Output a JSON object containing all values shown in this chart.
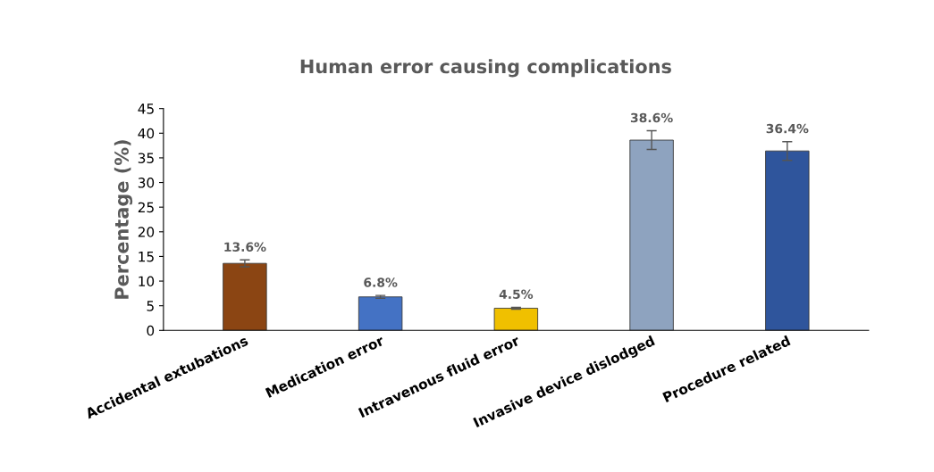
{
  "chart_data": {
    "type": "bar",
    "title": "Human error causing complications",
    "ylabel": "Percentage (%)",
    "categories": [
      "Accidental extubations",
      "Medication error",
      "Intravenous fluid error",
      "Invasive device dislodged",
      "Procedure related"
    ],
    "values": [
      13.6,
      6.8,
      4.5,
      38.6,
      36.4
    ],
    "colors": [
      "#8b4513",
      "#4472c4",
      "#f0c000",
      "#8ea3bf",
      "#2f559c"
    ],
    "errors": [
      0.7,
      0.3,
      0.2,
      1.9,
      1.9
    ],
    "value_labels": [
      "13.6%",
      "6.8%",
      "4.5%",
      "38.6%",
      "36.4%"
    ],
    "ylim": [
      0,
      45
    ],
    "yticks": [
      0,
      5,
      10,
      15,
      20,
      25,
      30,
      35,
      40,
      45
    ],
    "grid": false,
    "legend": false
  }
}
